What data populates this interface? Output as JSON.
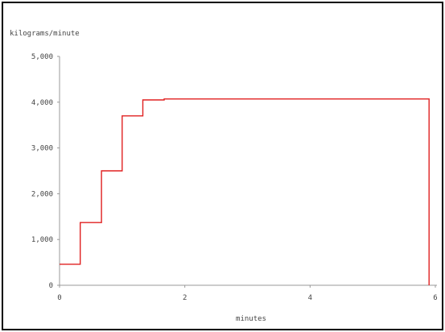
{
  "chart_data": {
    "type": "line",
    "step": true,
    "title": "",
    "ylabel": "kilograms/minute",
    "xlabel": "minutes",
    "xlim": [
      0,
      6
    ],
    "ylim": [
      0,
      5000
    ],
    "x_ticks": [
      0,
      2,
      4,
      6
    ],
    "x_tick_labels": [
      "0",
      "2",
      "4",
      "6"
    ],
    "y_ticks": [
      0,
      1000,
      2000,
      3000,
      4000,
      5000
    ],
    "y_tick_labels": [
      "0",
      "1,000",
      "2,000",
      "3,000",
      "4,000",
      "5,000"
    ],
    "grid": false,
    "legend": "none",
    "colors": {
      "series": "#e02020",
      "axis": "#999999"
    },
    "series": [
      {
        "points": [
          {
            "x": 0,
            "y": 460
          },
          {
            "x": 0.33,
            "y": 460
          },
          {
            "x": 0.33,
            "y": 1370
          },
          {
            "x": 0.67,
            "y": 1370
          },
          {
            "x": 0.67,
            "y": 2500
          },
          {
            "x": 1.0,
            "y": 2500
          },
          {
            "x": 1.0,
            "y": 3700
          },
          {
            "x": 1.33,
            "y": 3700
          },
          {
            "x": 1.33,
            "y": 4050
          },
          {
            "x": 1.67,
            "y": 4050
          },
          {
            "x": 1.67,
            "y": 4070
          },
          {
            "x": 5.9,
            "y": 4070
          },
          {
            "x": 5.9,
            "y": 0
          }
        ]
      }
    ]
  }
}
